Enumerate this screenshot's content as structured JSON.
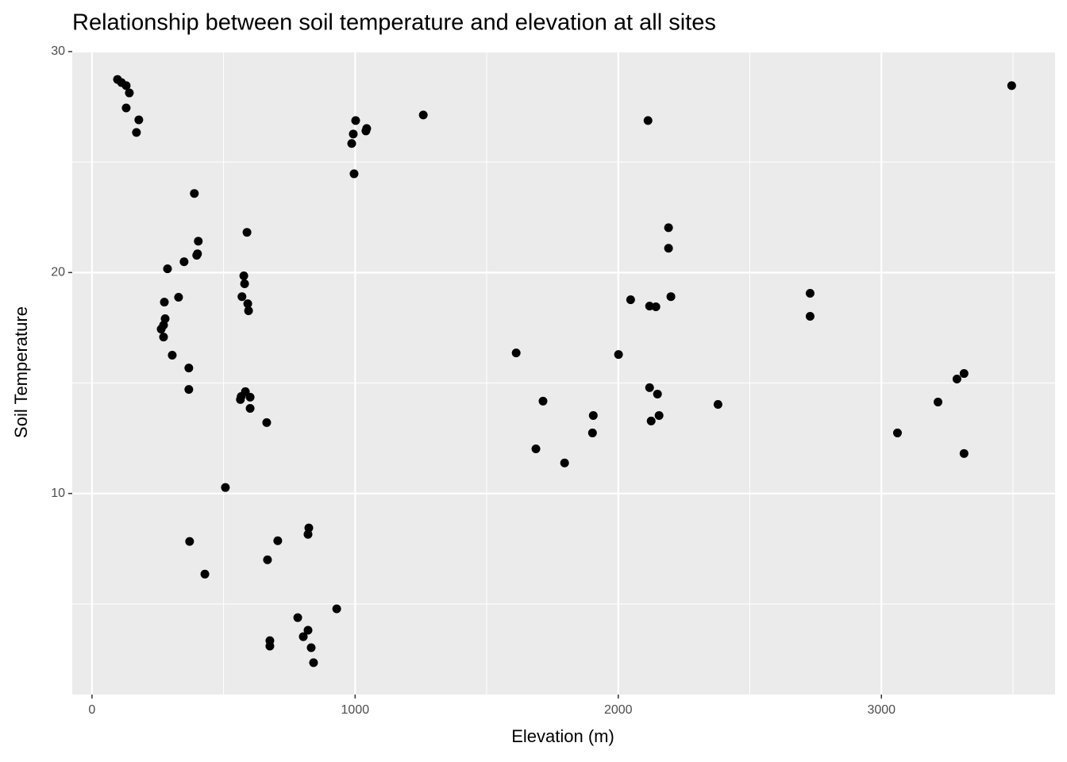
{
  "chart_data": {
    "type": "scatter",
    "title": "Relationship between soil temperature and elevation at all sites",
    "x_label": "Elevation (m)",
    "y_label": "Soil Temperature",
    "color": "#000000",
    "xlim": [
      -75,
      3660
    ],
    "ylim": [
      0.9,
      30.0
    ],
    "xticks": [
      0,
      1000,
      2000,
      3000
    ],
    "yticks": [
      10,
      20,
      30
    ],
    "xminor": [
      500,
      1500,
      2500,
      3500
    ],
    "yminor": [
      5,
      15,
      25
    ],
    "grid": true,
    "x": [
      97,
      112,
      130,
      142,
      130,
      178,
      169,
      389,
      404,
      401,
      398,
      350,
      287,
      329,
      275,
      278,
      272,
      263,
      272,
      305,
      368,
      368,
      589,
      577,
      580,
      570,
      592,
      595,
      583,
      567,
      564,
      601,
      601,
      664,
      507,
      371,
      429,
      667,
      706,
      824,
      821,
      782,
      821,
      803,
      676,
      676,
      833,
      842,
      930,
      1002,
      993,
      987,
      1044,
      1041,
      996,
      1259,
      2113,
      2191,
      2191,
      2200,
      2047,
      2119,
      2143,
      2001,
      1612,
      1714,
      2119,
      2149,
      1905,
      2155,
      2125,
      1902,
      1687,
      1796,
      2379,
      2729,
      2729,
      3495,
      3314,
      3287,
      3215,
      3061,
      3314
    ],
    "values": [
      28.74,
      28.6,
      28.46,
      28.13,
      27.45,
      26.91,
      26.34,
      23.58,
      21.42,
      20.85,
      20.78,
      20.49,
      20.17,
      18.88,
      18.66,
      17.91,
      17.62,
      17.44,
      17.08,
      16.26,
      15.68,
      14.71,
      21.82,
      19.85,
      19.49,
      18.91,
      18.59,
      18.27,
      14.61,
      14.39,
      14.25,
      14.36,
      13.85,
      13.21,
      10.27,
      7.83,
      6.35,
      7.0,
      7.86,
      8.44,
      8.15,
      4.38,
      3.81,
      3.52,
      3.34,
      3.09,
      3.02,
      2.34,
      4.78,
      26.88,
      26.27,
      25.84,
      26.52,
      26.41,
      24.47,
      27.13,
      26.88,
      22.03,
      21.1,
      18.91,
      18.77,
      18.48,
      18.45,
      16.29,
      16.36,
      14.18,
      14.79,
      14.5,
      13.53,
      13.53,
      13.28,
      12.74,
      12.02,
      11.38,
      14.03,
      19.06,
      18.02,
      28.46,
      15.43,
      15.18,
      14.14,
      12.74,
      11.81
    ]
  }
}
